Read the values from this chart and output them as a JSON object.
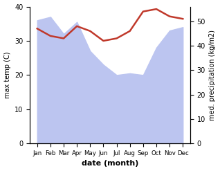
{
  "months": [
    "Jan",
    "Feb",
    "Mar",
    "Apr",
    "May",
    "Jun",
    "Jul",
    "Aug",
    "Sep",
    "Oct",
    "Nov",
    "Dec"
  ],
  "max_temp": [
    36,
    37,
    32,
    35.5,
    27,
    23,
    20,
    20.5,
    20,
    28,
    33,
    34
  ],
  "precipitation": [
    47,
    44,
    43,
    48,
    46,
    42,
    43,
    46,
    54,
    55,
    52,
    51
  ],
  "temp_fill_color": "#bcc5f0",
  "precip_color": "#c0392b",
  "ylabel_left": "max temp (C)",
  "ylabel_right": "med. precipitation (kg/m2)",
  "xlabel": "date (month)",
  "ylim_left": [
    0,
    40
  ],
  "ylim_right": [
    0,
    56
  ],
  "yticks_left": [
    0,
    10,
    20,
    30,
    40
  ],
  "yticks_right": [
    0,
    10,
    20,
    30,
    40,
    50
  ],
  "bg_color": "#ffffff",
  "fig_width": 3.18,
  "fig_height": 2.47,
  "dpi": 100
}
